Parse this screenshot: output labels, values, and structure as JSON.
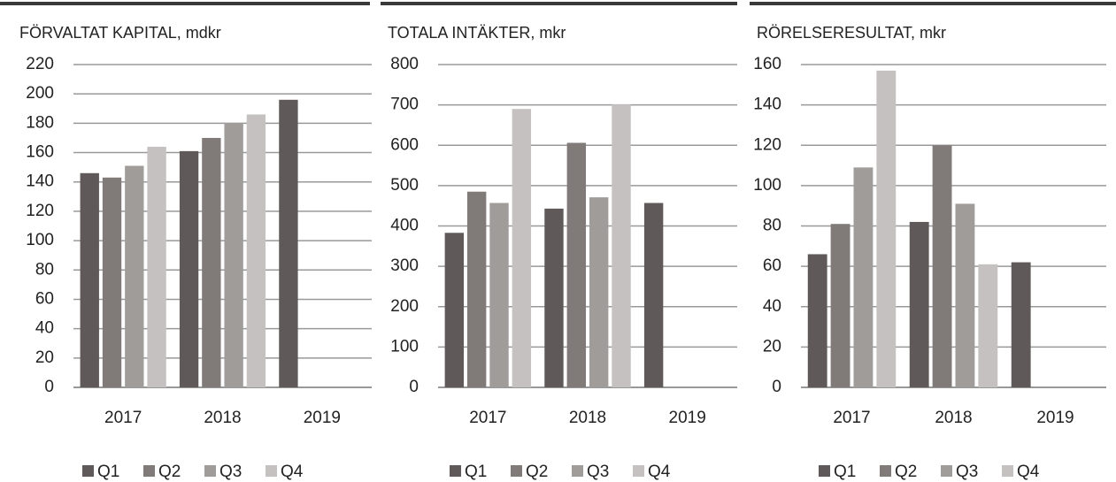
{
  "chart_data": [
    {
      "type": "bar",
      "title": "FÖRVALTAT KAPITAL, mdkr",
      "categories": [
        "2017",
        "2018",
        "2019"
      ],
      "series": [
        {
          "name": "Q1",
          "color": "#5f5a59",
          "values": [
            146,
            161,
            196
          ]
        },
        {
          "name": "Q2",
          "color": "#807b78",
          "values": [
            143,
            170,
            null
          ]
        },
        {
          "name": "Q3",
          "color": "#a09c9a",
          "values": [
            151,
            180,
            null
          ]
        },
        {
          "name": "Q4",
          "color": "#c4c1c0",
          "values": [
            164,
            186,
            null
          ]
        }
      ],
      "ylim": [
        0,
        220
      ],
      "yticks": [
        0,
        20,
        40,
        60,
        80,
        100,
        120,
        140,
        160,
        180,
        200,
        220
      ],
      "grid": true,
      "legend": "bottom"
    },
    {
      "type": "bar",
      "title": "TOTALA INTÄKTER, mkr",
      "categories": [
        "2017",
        "2018",
        "2019"
      ],
      "series": [
        {
          "name": "Q1",
          "color": "#5f5a59",
          "values": [
            383,
            443,
            457
          ]
        },
        {
          "name": "Q2",
          "color": "#807b78",
          "values": [
            485,
            606,
            null
          ]
        },
        {
          "name": "Q3",
          "color": "#a09c9a",
          "values": [
            457,
            471,
            null
          ]
        },
        {
          "name": "Q4",
          "color": "#c4c1c0",
          "values": [
            690,
            701,
            null
          ]
        }
      ],
      "ylim": [
        0,
        800
      ],
      "yticks": [
        0,
        100,
        200,
        300,
        400,
        500,
        600,
        700,
        800
      ],
      "grid": true,
      "legend": "bottom"
    },
    {
      "type": "bar",
      "title": "RÖRELSERESULTAT, mkr",
      "categories": [
        "2017",
        "2018",
        "2019"
      ],
      "series": [
        {
          "name": "Q1",
          "color": "#5f5a59",
          "values": [
            66,
            82,
            62
          ]
        },
        {
          "name": "Q2",
          "color": "#807b78",
          "values": [
            81,
            120,
            null
          ]
        },
        {
          "name": "Q3",
          "color": "#a09c9a",
          "values": [
            109,
            91,
            null
          ]
        },
        {
          "name": "Q4",
          "color": "#c4c1c0",
          "values": [
            157,
            61,
            null
          ]
        }
      ],
      "ylim": [
        0,
        160
      ],
      "yticks": [
        0,
        20,
        40,
        60,
        80,
        100,
        120,
        140,
        160
      ],
      "grid": true,
      "legend": "bottom"
    }
  ]
}
